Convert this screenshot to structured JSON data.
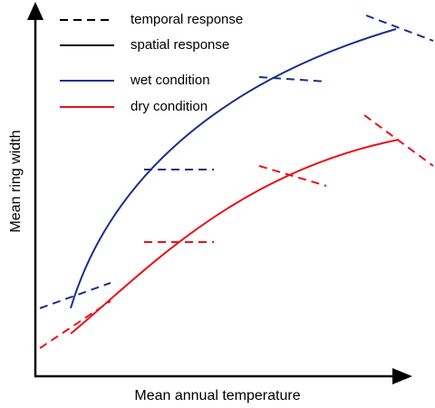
{
  "axes": {
    "xlabel": "Mean annual temperature",
    "ylabel": "Mean ring width"
  },
  "legend": [
    {
      "key": "temporal",
      "label": "temporal response",
      "style": "dashed",
      "color": "#000000"
    },
    {
      "key": "spatial",
      "label": "spatial response",
      "style": "solid",
      "color": "#000000"
    },
    {
      "key": "wet",
      "label": "wet condition",
      "style": "solid",
      "color": "#1c2f8a"
    },
    {
      "key": "dry",
      "label": "dry condition",
      "style": "solid",
      "color": "#e8121b"
    }
  ],
  "colors": {
    "wet": "#1c2f8a",
    "dry": "#e8121b",
    "axis": "#000000"
  }
}
